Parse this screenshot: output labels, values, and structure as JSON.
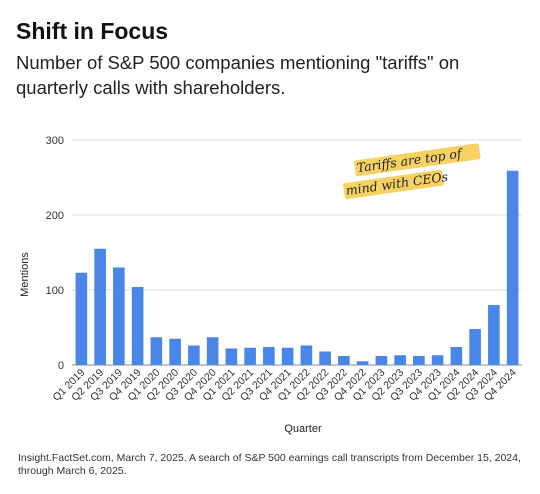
{
  "header": {
    "title": "Shift in Focus",
    "subtitle": "Number of S&P 500 companies mentioning \"tariffs\" on quarterly calls with shareholders."
  },
  "annotation": {
    "line1": "Tariffs are top of",
    "line2": "mind with CEOs",
    "highlight_color": "#f7c948"
  },
  "source": "Insight.FactSet.com, March 7, 2025.  A search of S&P 500 earnings call transcripts from December 15, 2024, through March 6, 2025.",
  "chart_data": {
    "type": "bar",
    "title": "Shift in Focus",
    "subtitle": "Number of S&P 500 companies mentioning \"tariffs\" on quarterly calls with shareholders.",
    "xlabel": "Quarter",
    "ylabel": "Mentions",
    "ylim": [
      0,
      300
    ],
    "yticks": [
      0,
      100,
      200,
      300
    ],
    "grid": true,
    "bar_color": "#4a86e8",
    "categories": [
      "Q1 2019",
      "Q2 2019",
      "Q3 2019",
      "Q4 2019",
      "Q1 2020",
      "Q2 2020",
      "Q3 2020",
      "Q4 2020",
      "Q1 2021",
      "Q2 2021",
      "Q3 2021",
      "Q4 2021",
      "Q1 2022",
      "Q2 2022",
      "Q3 2022",
      "Q4 2022",
      "Q1 2023",
      "Q2 2023",
      "Q3 2023",
      "Q4 2023",
      "Q1 2024",
      "Q2 2024",
      "Q3 2024",
      "Q4 2024"
    ],
    "values": [
      123,
      155,
      130,
      104,
      37,
      35,
      26,
      37,
      22,
      23,
      24,
      23,
      26,
      18,
      12,
      5,
      12,
      13,
      12,
      13,
      24,
      48,
      80,
      259
    ]
  }
}
